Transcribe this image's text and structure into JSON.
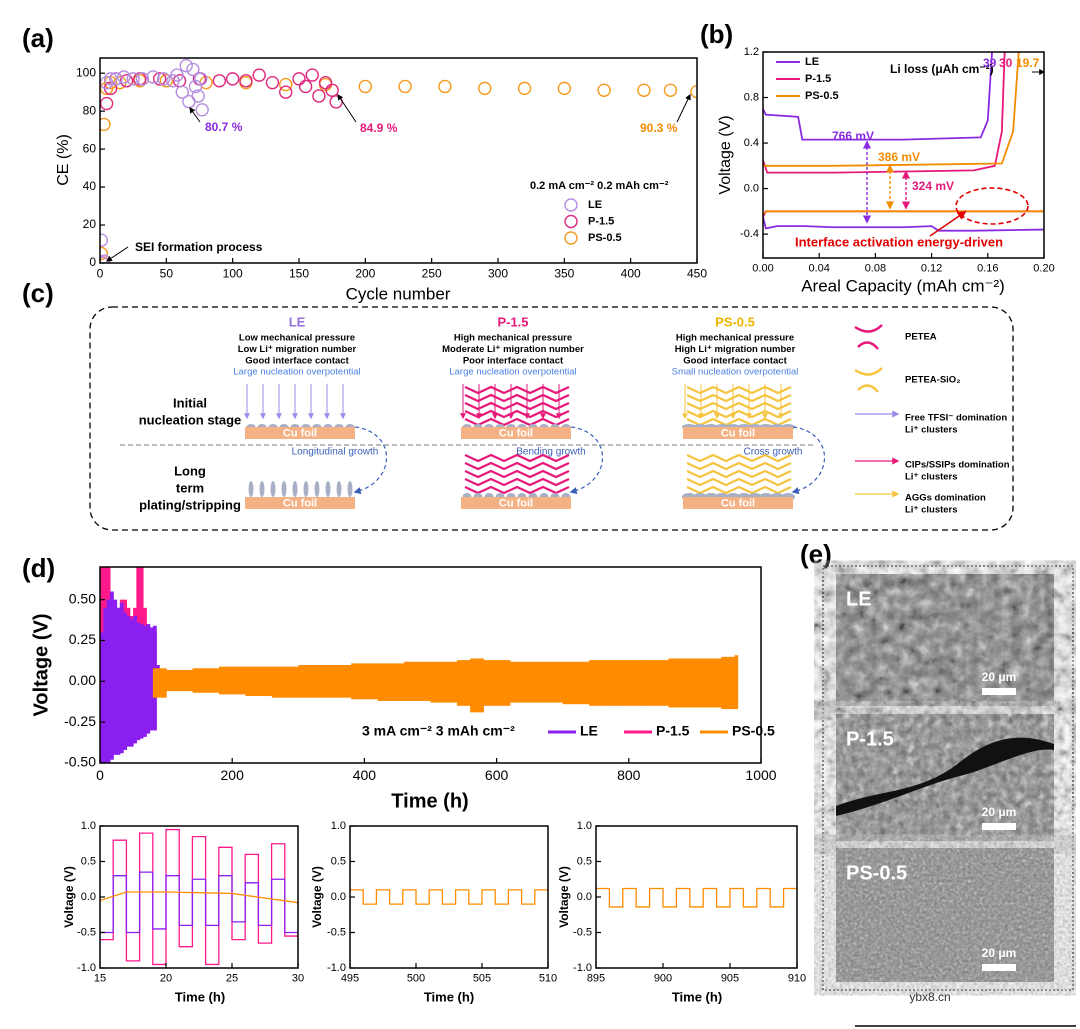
{
  "chart_data": [
    {
      "type": "scatter",
      "label": "(a)",
      "xlabel": "Cycle number",
      "ylabel": "CE (%)",
      "xlim": [
        0,
        450
      ],
      "xticks": [
        0,
        50,
        100,
        150,
        200,
        250,
        300,
        350,
        400,
        450
      ],
      "ylim": [
        0,
        108
      ],
      "yticks": [
        0,
        20,
        40,
        60,
        80,
        100
      ],
      "condition": "0.2 mA cm⁻² 0.2 mAh cm⁻²",
      "annotations": [
        {
          "text": "80.7 %",
          "color": "#8a2be2"
        },
        {
          "text": "84.9 %",
          "color": "#e6197a"
        },
        {
          "text": "90.3 %",
          "color": "#f28c00"
        },
        {
          "text": "SEI formation process",
          "color": "#000000"
        }
      ],
      "series": [
        {
          "name": "LE",
          "color": "#b58ee0",
          "x": [
            1,
            2,
            3,
            5,
            8,
            12,
            18,
            25,
            32,
            40,
            48,
            55,
            58,
            62,
            65,
            67,
            70,
            72,
            74,
            76,
            77
          ],
          "values": [
            12,
            0,
            1,
            95,
            97,
            97,
            98,
            97,
            97,
            98,
            97,
            96,
            99,
            90,
            104,
            85,
            102,
            93,
            88,
            97,
            80.7
          ]
        },
        {
          "name": "P-1.5",
          "color": "#e0287f",
          "x": [
            2,
            5,
            8,
            12,
            20,
            30,
            45,
            60,
            75,
            90,
            100,
            110,
            120,
            130,
            140,
            150,
            155,
            160,
            165,
            170,
            175,
            178
          ],
          "values": [
            0,
            84,
            92,
            97,
            96,
            97,
            97,
            96,
            97,
            96,
            97,
            96,
            99,
            95,
            90,
            97,
            93,
            99,
            88,
            95,
            91,
            84.9
          ]
        },
        {
          "name": "PS-0.5",
          "color": "#f39a1e",
          "x": [
            1,
            3,
            5,
            8,
            15,
            30,
            50,
            80,
            110,
            140,
            170,
            200,
            230,
            260,
            290,
            320,
            350,
            380,
            410,
            430,
            450
          ],
          "values": [
            5,
            73,
            92,
            95,
            95,
            96,
            96,
            95,
            95,
            94,
            94,
            93,
            93,
            93,
            92,
            92,
            92,
            91,
            91,
            91,
            90.3
          ]
        }
      ]
    },
    {
      "type": "line",
      "label": "(b)",
      "xlabel": "Areal Capacity (mAh cm⁻²)",
      "ylabel": "Voltage (V)",
      "xlim": [
        0,
        0.2
      ],
      "xticks": [
        {
          "value": 0,
          "label": "0.00"
        },
        {
          "value": 0.04,
          "label": "0.04"
        },
        {
          "value": 0.08,
          "label": "0.08"
        },
        {
          "value": 0.12,
          "label": "0.12"
        },
        {
          "value": 0.16,
          "label": "0.16"
        },
        {
          "value": 0.2,
          "label": "0.20"
        }
      ],
      "ylim": [
        -0.61,
        1.2
      ],
      "yticks": [
        -0.4,
        {
          "value": 0,
          "label": "0.0"
        },
        0.4,
        0.8,
        1.2
      ],
      "annotations": [
        {
          "text": "766 mV",
          "color": "#8a2be2"
        },
        {
          "text": "386 mV",
          "color": "#f28c00"
        },
        {
          "text": "324 mV",
          "color": "#e6197a"
        },
        {
          "text": "Interface activation energy-driven",
          "color": "#e00000"
        },
        {
          "text": "Li loss (μAh cm⁻²)",
          "color": "#000000"
        },
        {
          "text": "39",
          "color": "#8a2be2"
        },
        {
          "text": "30",
          "color": "#e6197a"
        },
        {
          "text": "19.7",
          "color": "#f28c00"
        }
      ],
      "series": [
        {
          "name": "LE",
          "color": "#8a2be2",
          "x": [
            0,
            0.002,
            0.01,
            0.03,
            0.05,
            0.1,
            0.12,
            0.125,
            0.15,
            0.2,
            0.2,
            0,
            0.002,
            0.025,
            0.028,
            0.05,
            0.1,
            0.155,
            0.16,
            0.163
          ],
          "values": [
            -0.25,
            -0.35,
            -0.33,
            -0.33,
            -0.34,
            -0.34,
            -0.33,
            -0.37,
            -0.37,
            -0.36,
            null,
            0.7,
            0.65,
            0.63,
            0.43,
            0.43,
            0.43,
            0.45,
            0.6,
            1.2
          ]
        },
        {
          "name": "P-1.5",
          "color": "#e6197a",
          "x": [
            0,
            0.002,
            0.2,
            0.2,
            0,
            0.003,
            0.05,
            0.15,
            0.165,
            0.17,
            0.172
          ],
          "values": [
            -0.25,
            -0.2,
            -0.2,
            null,
            0.25,
            0.14,
            0.14,
            0.16,
            0.2,
            0.5,
            1.2
          ]
        },
        {
          "name": "PS-0.5",
          "color": "#f28c00",
          "x": [
            0,
            0.003,
            0.2,
            0.2,
            0,
            0.05,
            0.17,
            0.178,
            0.182
          ],
          "values": [
            -0.22,
            -0.2,
            -0.2,
            null,
            0.2,
            0.2,
            0.22,
            0.5,
            1.2
          ]
        }
      ]
    },
    {
      "type": "band",
      "label": "(d)",
      "xlabel": "Time (h)",
      "ylabel": "Voltage (V)",
      "xlim": [
        0,
        1000
      ],
      "xticks": [
        0,
        200,
        400,
        600,
        800,
        1000
      ],
      "ylim": [
        -0.5,
        0.7
      ],
      "yticks": [
        {
          "value": -0.5,
          "label": "-0.50"
        },
        {
          "value": -0.25,
          "label": "-0.25"
        },
        {
          "value": 0,
          "label": "0.00"
        },
        {
          "value": 0.25,
          "label": "0.25"
        },
        {
          "value": 0.5,
          "label": "0.50"
        }
      ],
      "condition": "3 mA cm⁻² 3 mAh cm⁻²",
      "series": [
        {
          "name": "LE",
          "color": "#8a1ff0",
          "x": [
            0,
            5,
            10,
            15,
            20,
            25,
            30,
            35,
            40,
            45,
            50,
            55,
            60,
            65,
            70,
            75,
            80,
            85
          ],
          "upper": [
            0.3,
            0.45,
            0.5,
            0.55,
            0.5,
            0.45,
            0.48,
            0.42,
            0.4,
            0.38,
            0.4,
            0.36,
            0.35,
            0.34,
            0.35,
            0.33,
            0.34,
            0.1
          ],
          "lower": [
            -0.5,
            -0.5,
            -0.5,
            -0.48,
            -0.45,
            -0.45,
            -0.44,
            -0.42,
            -0.4,
            -0.4,
            -0.38,
            -0.36,
            -0.35,
            -0.34,
            -0.32,
            -0.3,
            -0.3,
            -0.05
          ]
        },
        {
          "name": "P-1.5",
          "color": "#ff1a8c",
          "x": [
            0,
            5,
            10,
            15,
            20,
            25,
            30,
            35,
            40,
            45,
            50,
            55,
            60,
            65,
            70,
            75,
            80,
            85
          ],
          "upper": [
            0.7,
            0.7,
            0.7,
            0.5,
            0.45,
            0.45,
            0.5,
            0.5,
            0.45,
            0.4,
            0.45,
            0.7,
            0.7,
            0.45,
            0.35,
            0.3,
            0.3,
            0.08
          ],
          "lower": [
            -0.4,
            -0.45,
            -0.4,
            -0.4,
            -0.38,
            -0.37,
            -0.36,
            -0.35,
            -0.35,
            -0.34,
            -0.33,
            -0.33,
            -0.32,
            -0.3,
            -0.3,
            -0.3,
            -0.3,
            -0.05
          ]
        },
        {
          "name": "PS-0.5",
          "color": "#ff8c00",
          "x": [
            80,
            100,
            140,
            180,
            220,
            260,
            300,
            340,
            380,
            420,
            460,
            500,
            540,
            560,
            580,
            620,
            660,
            700,
            740,
            780,
            820,
            860,
            900,
            940,
            960
          ],
          "upper": [
            0.08,
            0.07,
            0.08,
            0.09,
            0.09,
            0.09,
            0.1,
            0.1,
            0.11,
            0.11,
            0.12,
            0.12,
            0.13,
            0.14,
            0.13,
            0.12,
            0.12,
            0.12,
            0.13,
            0.13,
            0.13,
            0.14,
            0.14,
            0.15,
            0.16
          ],
          "lower": [
            -0.1,
            -0.06,
            -0.07,
            -0.08,
            -0.09,
            -0.1,
            -0.1,
            -0.1,
            -0.11,
            -0.12,
            -0.12,
            -0.13,
            -0.15,
            -0.19,
            -0.15,
            -0.13,
            -0.13,
            -0.14,
            -0.15,
            -0.15,
            -0.15,
            -0.16,
            -0.16,
            -0.17,
            -0.17
          ]
        }
      ]
    },
    {
      "type": "line",
      "xlabel": "Time (h)",
      "ylabel": "Voltage (V)",
      "xlim": [
        15,
        30
      ],
      "xticks": [
        15,
        20,
        25,
        30
      ],
      "ylim": [
        -1,
        1
      ],
      "yticks": [
        {
          "value": -1,
          "label": "-1.0"
        },
        -0.5,
        {
          "value": 0,
          "label": "0.0"
        },
        0.5,
        {
          "value": 1,
          "label": "1.0"
        }
      ],
      "series": [
        {
          "name": "P-1.5",
          "color": "#ff1a8c",
          "x": [
            15,
            16,
            16,
            17,
            17,
            18,
            18,
            19,
            19,
            20,
            20,
            21,
            21,
            22,
            22,
            23,
            23,
            24,
            24,
            25,
            25,
            26,
            26,
            27,
            27,
            28,
            28,
            29,
            29,
            30
          ],
          "values": [
            -0.6,
            -0.6,
            0.8,
            0.8,
            -0.9,
            -0.9,
            0.9,
            0.9,
            -0.95,
            -0.95,
            0.95,
            0.95,
            -0.7,
            -0.7,
            0.85,
            0.85,
            -0.95,
            -0.95,
            0.7,
            0.7,
            -0.6,
            -0.6,
            0.6,
            0.6,
            -0.65,
            -0.65,
            0.75,
            0.75,
            -0.55,
            -0.55
          ]
        },
        {
          "name": "LE",
          "color": "#8a1ff0",
          "x": [
            15,
            16,
            16,
            17,
            17,
            18,
            18,
            19,
            19,
            20,
            20,
            21,
            21,
            22,
            22,
            23,
            23,
            24,
            24,
            25,
            25,
            26,
            26,
            27,
            27,
            28,
            28,
            29,
            29,
            30
          ],
          "values": [
            -0.5,
            -0.5,
            0.3,
            0.3,
            -0.5,
            -0.5,
            0.35,
            0.35,
            -0.45,
            -0.45,
            0.3,
            0.3,
            -0.4,
            -0.4,
            0.25,
            0.25,
            -0.4,
            -0.4,
            0.3,
            0.3,
            -0.35,
            -0.35,
            0.2,
            0.2,
            -0.4,
            -0.4,
            0.25,
            0.25,
            -0.5,
            -0.5
          ]
        },
        {
          "name": "PS-0.5",
          "color": "#ff8c00",
          "x": [
            15,
            17,
            20,
            25,
            30
          ],
          "values": [
            -0.05,
            0.07,
            0.07,
            0.05,
            -0.08
          ]
        }
      ]
    },
    {
      "type": "line",
      "xlabel": "Time (h)",
      "ylabel": "Voltage (V)",
      "xlim": [
        495,
        510
      ],
      "xticks": [
        495,
        500,
        505,
        510
      ],
      "ylim": [
        -1,
        1
      ],
      "yticks": [
        {
          "value": -1,
          "label": "-1.0"
        },
        -0.5,
        {
          "value": 0,
          "label": "0.0"
        },
        0.5,
        {
          "value": 1,
          "label": "1.0"
        }
      ],
      "series": [
        {
          "name": "PS-0.5",
          "color": "#ff8c00",
          "x": [
            495,
            496,
            496,
            497,
            497,
            498,
            498,
            499,
            499,
            500,
            500,
            501,
            501,
            502,
            502,
            503,
            503,
            504,
            504,
            505,
            505,
            506,
            506,
            507,
            507,
            508,
            508,
            509,
            509,
            510
          ],
          "values": [
            0.1,
            0.1,
            -0.1,
            -0.1,
            0.1,
            0.1,
            -0.1,
            -0.1,
            0.1,
            0.1,
            -0.1,
            -0.1,
            0.1,
            0.1,
            -0.1,
            -0.1,
            0.1,
            0.1,
            -0.1,
            -0.1,
            0.1,
            0.1,
            -0.1,
            -0.1,
            0.1,
            0.1,
            -0.1,
            -0.1,
            0.1,
            0.1
          ]
        }
      ]
    },
    {
      "type": "line",
      "xlabel": "Time (h)",
      "ylabel": "Voltage (V)",
      "xlim": [
        895,
        910
      ],
      "xticks": [
        895,
        900,
        905,
        910
      ],
      "ylim": [
        -1,
        1
      ],
      "yticks": [
        {
          "value": -1,
          "label": "-1.0"
        },
        -0.5,
        {
          "value": 0,
          "label": "0.0"
        },
        0.5,
        {
          "value": 1,
          "label": "1.0"
        }
      ],
      "series": [
        {
          "name": "PS-0.5",
          "color": "#ff8c00",
          "x": [
            895,
            896,
            896,
            897,
            897,
            898,
            898,
            899,
            899,
            900,
            900,
            901,
            901,
            902,
            902,
            903,
            903,
            904,
            904,
            905,
            905,
            906,
            906,
            907,
            907,
            908,
            908,
            909,
            909,
            910
          ],
          "values": [
            0.12,
            0.12,
            -0.14,
            -0.14,
            0.12,
            0.12,
            -0.14,
            -0.14,
            0.12,
            0.12,
            -0.14,
            -0.14,
            0.12,
            0.12,
            -0.14,
            -0.14,
            0.12,
            0.12,
            -0.14,
            -0.14,
            0.12,
            0.12,
            -0.14,
            -0.14,
            0.12,
            0.12,
            -0.14,
            -0.14,
            0.12,
            0.12
          ]
        }
      ]
    }
  ],
  "diagram": {
    "label": "(c)",
    "foil": "Cu foil",
    "rows": [
      [
        "Initial",
        "nucleation stage"
      ],
      [
        "Long",
        "term",
        "plating/stripping"
      ]
    ],
    "columns": [
      {
        "title": "LE",
        "color": "#9370db",
        "lines": [
          "Low mechanical pressure",
          "Low Li⁺ migration number",
          "Good interface contact"
        ],
        "highlight": "Large nucleation overpotential",
        "growth": "Longitudinal growth"
      },
      {
        "title": "P-1.5",
        "color": "#e6197a",
        "lines": [
          "High mechanical pressure",
          "Moderate Li⁺ migration number",
          "Poor interface contact"
        ],
        "highlight": "Large nucleation overpotential",
        "growth": "Bending growth"
      },
      {
        "title": "PS-0.5",
        "color": "#f0b400",
        "lines": [
          "High mechanical pressure",
          "High Li⁺ migration number",
          "Good interface contact"
        ],
        "highlight": "Small nucleation overpotential",
        "growth": "Cross growth"
      }
    ],
    "legend": [
      [
        "PETEA"
      ],
      [
        "PETEA-SiO₂"
      ],
      [
        "Free TFSI⁻ domination",
        "Li⁺ clusters"
      ],
      [
        "CIPs/SSIPs domination",
        "Li⁺ clusters"
      ],
      [
        "AGGs domination",
        "Li⁺ clusters"
      ]
    ]
  },
  "images": {
    "label": "(e)",
    "panels": [
      "LE",
      "P-1.5",
      "PS-0.5"
    ],
    "scale": "20 μm"
  },
  "watermark": "ybx8.cn"
}
